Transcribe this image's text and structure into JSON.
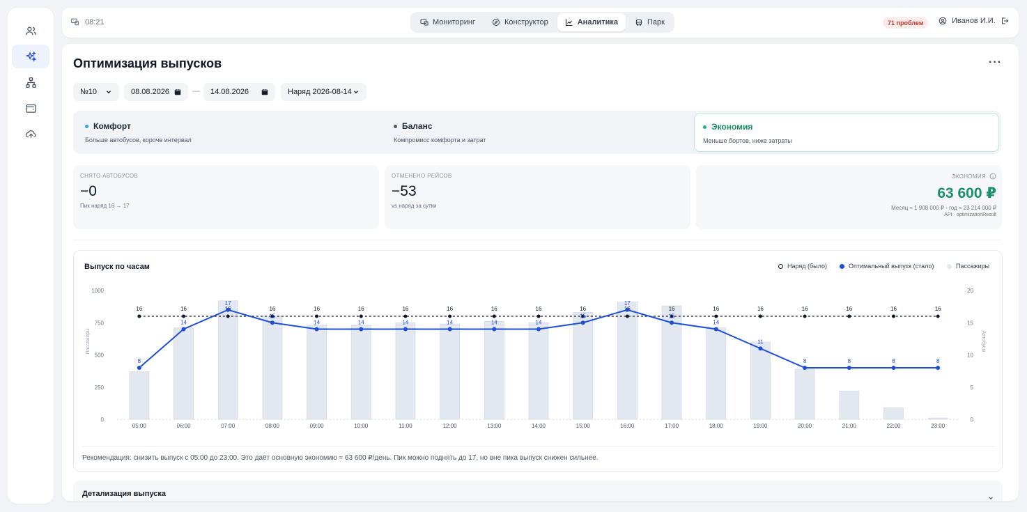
{
  "sidebar": {
    "items": [
      {
        "icon": "users-icon"
      },
      {
        "icon": "sparkles-icon",
        "active": true
      },
      {
        "icon": "network-icon"
      },
      {
        "icon": "wallet-icon"
      },
      {
        "icon": "upload-cloud-icon"
      }
    ]
  },
  "topbar": {
    "time": "08:21",
    "nav": [
      {
        "label": "Мониторинг",
        "icon": "monitor-icon"
      },
      {
        "label": "Конструктор",
        "icon": "compass-icon"
      },
      {
        "label": "Аналитика",
        "icon": "chart-icon",
        "active": true
      },
      {
        "label": "Парк",
        "icon": "bus-icon"
      }
    ],
    "problems": "71 проблем",
    "user": "Иванов И.И."
  },
  "page": {
    "title": "Оптимизация выпусков",
    "route": "№10",
    "date_from": "08.08.2026",
    "date_to": "14.08.2026",
    "dash": "—",
    "order": "Наряд 2026-08-14"
  },
  "modes": [
    {
      "title": "Комфорт",
      "desc": "Больше автобусов, короче интервал",
      "color": "#2aa7d6"
    },
    {
      "title": "Баланс",
      "desc": "Компромисс комфорта и затрат",
      "color": "#4b5563"
    },
    {
      "title": "Экономия",
      "desc": "Меньше бортов, ниже затраты",
      "color": "#1aaf85",
      "active": true
    }
  ],
  "kpis": {
    "removed_buses": {
      "label": "СНЯТО АВТОБУСОВ",
      "value": "−0",
      "sub": "Пик наряд 16 → 17"
    },
    "cancelled_trips": {
      "label": "ОТМЕНЕНО РЕЙСОВ",
      "value": "−53",
      "sub": "vs наряд за сутки"
    },
    "savings": {
      "label": "ЭКОНОМИЯ",
      "value": "63 600 ₽",
      "sub": "Месяц ≈ 1 908 000 ₽ · год ≈ 23 214 000 ₽",
      "source": "API · optimizationResult"
    }
  },
  "chart": {
    "title": "Выпуск по часам",
    "legend": {
      "order": "Наряд (было)",
      "optimal": "Оптимальный выпуск (стало)",
      "passengers": "Пассажиры"
    },
    "recommendation": "Рекомендация: снизить выпуск с 05:00 до 23:00. Это даёт основную экономию ≈ 63 600 ₽/день. Пик можно поднять до 17, но вне пика выпуск снижен сильнее."
  },
  "chart_data": {
    "type": "bar+line",
    "categories": [
      "05:00",
      "06:00",
      "07:00",
      "08:00",
      "09:00",
      "10:00",
      "11:00",
      "12:00",
      "13:00",
      "14:00",
      "15:00",
      "16:00",
      "17:00",
      "18:00",
      "19:00",
      "20:00",
      "21:00",
      "22:00",
      "23:00"
    ],
    "ylabel_left": "Пассажиры",
    "ylabel_right": "Автобусы",
    "ylim_left": [
      0,
      1000
    ],
    "yticks_left": [
      0,
      250,
      500,
      750,
      1000
    ],
    "ylim_right": [
      0,
      20
    ],
    "yticks_right": [
      0,
      5,
      10,
      15,
      20
    ],
    "series": [
      {
        "name": "Пассажиры",
        "kind": "bar",
        "axis": "left",
        "color": "#dfe5ee",
        "values": [
          370,
          710,
          920,
          800,
          730,
          730,
          750,
          740,
          760,
          750,
          830,
          910,
          880,
          710,
          600,
          390,
          220,
          90,
          10
        ]
      },
      {
        "name": "Наряд (было)",
        "kind": "line-dashed",
        "axis": "right",
        "color": "#111827",
        "values": [
          16,
          16,
          16,
          16,
          16,
          16,
          16,
          16,
          16,
          16,
          16,
          16,
          16,
          16,
          16,
          16,
          16,
          16,
          16
        ]
      },
      {
        "name": "Оптимальный выпуск (стало)",
        "kind": "line",
        "axis": "right",
        "color": "#1d4ed8",
        "values": [
          8,
          14,
          17,
          15,
          14,
          14,
          14,
          14,
          14,
          14,
          15,
          17,
          15,
          14,
          11,
          8,
          8,
          8,
          8
        ]
      }
    ]
  },
  "detail": {
    "title": "Детализация выпуска"
  }
}
